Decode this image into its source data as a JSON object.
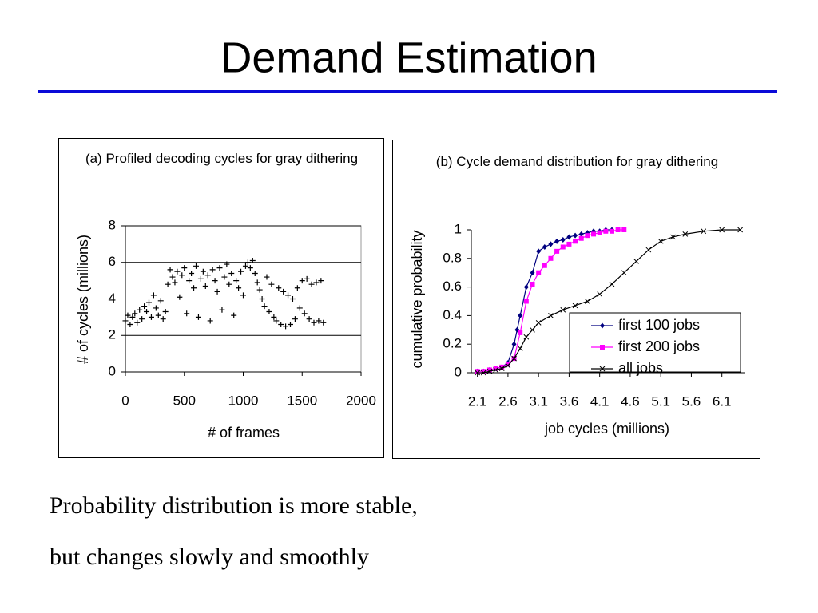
{
  "slide": {
    "title": "Demand Estimation",
    "body": [
      "Probability distribution is more stable,",
      "but changes slowly and smoothly"
    ]
  },
  "chart_data": [
    {
      "type": "scatter",
      "title": "(a) Profiled decoding cycles for gray dithering",
      "x_label": "# of frames",
      "y_label": "# of cycles (millions)",
      "x": [
        0,
        20,
        40,
        60,
        80,
        100,
        120,
        140,
        160,
        180,
        200,
        220,
        240,
        260,
        280,
        300,
        320,
        340,
        360,
        380,
        400,
        420,
        440,
        460,
        480,
        500,
        520,
        540,
        560,
        580,
        600,
        620,
        640,
        660,
        680,
        700,
        720,
        740,
        760,
        780,
        800,
        820,
        840,
        860,
        880,
        900,
        920,
        940,
        960,
        980,
        1000,
        1020,
        1040,
        1060,
        1080,
        1100,
        1120,
        1140,
        1160,
        1180,
        1200,
        1220,
        1240,
        1260,
        1280,
        1300,
        1320,
        1340,
        1360,
        1380,
        1400,
        1420,
        1440,
        1460,
        1480,
        1500,
        1520,
        1540,
        1560,
        1580,
        1600,
        1620,
        1640,
        1660,
        1680
      ],
      "values": [
        2.8,
        3.1,
        2.6,
        3.0,
        3.2,
        2.7,
        3.4,
        2.9,
        3.6,
        3.3,
        3.8,
        3.0,
        4.2,
        3.5,
        3.1,
        3.9,
        2.9,
        3.3,
        4.8,
        5.6,
        5.2,
        4.9,
        5.5,
        4.1,
        5.3,
        5.7,
        3.2,
        5.0,
        5.4,
        4.6,
        5.8,
        3.0,
        5.1,
        5.5,
        4.7,
        5.3,
        2.8,
        5.6,
        5.0,
        4.4,
        5.7,
        3.4,
        5.2,
        5.9,
        4.8,
        5.4,
        3.1,
        5.0,
        4.6,
        5.5,
        4.2,
        5.8,
        6.0,
        5.7,
        6.1,
        5.4,
        4.9,
        4.5,
        4.0,
        3.6,
        5.2,
        3.3,
        4.8,
        3.0,
        2.8,
        4.6,
        2.6,
        4.4,
        2.5,
        4.2,
        2.6,
        4.0,
        2.9,
        4.6,
        3.5,
        5.0,
        3.2,
        5.1,
        2.9,
        4.8,
        2.7,
        4.9,
        2.8,
        5.0,
        2.7
      ],
      "color": "#000000",
      "marker": "plus",
      "xlim": [
        0,
        2000
      ],
      "xticks": [
        0,
        500,
        1000,
        1500,
        2000
      ],
      "ylim": [
        0,
        8
      ],
      "yticks": [
        0,
        2,
        4,
        6,
        8
      ],
      "grid": true
    },
    {
      "type": "line",
      "title": "(b) Cycle demand distribution for gray dithering",
      "x_label": "job cycles (millions)",
      "y_label": "cumulative probability",
      "xlim": [
        2.0,
        6.47
      ],
      "xticks": [
        2.1,
        2.6,
        3.1,
        3.6,
        4.1,
        4.6,
        5.1,
        5.6,
        6.1
      ],
      "ylim": [
        0,
        1
      ],
      "yticks": [
        0,
        0.2,
        0.4,
        0.6,
        0.8,
        1
      ],
      "grid": false,
      "legend": "lower right",
      "series": [
        {
          "name": "first 100 jobs",
          "color": "#000080",
          "marker": "diamond",
          "x": [
            2.1,
            2.2,
            2.3,
            2.4,
            2.5,
            2.6,
            2.7,
            2.75,
            2.8,
            2.9,
            3.0,
            3.1,
            3.2,
            3.3,
            3.4,
            3.5,
            3.6,
            3.7,
            3.8,
            3.9,
            4.0,
            4.1,
            4.2,
            4.3
          ],
          "values": [
            0.01,
            0.01,
            0.02,
            0.03,
            0.04,
            0.07,
            0.2,
            0.3,
            0.4,
            0.6,
            0.7,
            0.85,
            0.88,
            0.9,
            0.92,
            0.93,
            0.95,
            0.96,
            0.97,
            0.98,
            0.99,
            0.99,
            1.0,
            1.0
          ]
        },
        {
          "name": "first 200 jobs",
          "color": "#ff00ff",
          "marker": "square",
          "x": [
            2.1,
            2.2,
            2.3,
            2.4,
            2.5,
            2.6,
            2.7,
            2.8,
            2.9,
            3.0,
            3.1,
            3.2,
            3.3,
            3.4,
            3.5,
            3.6,
            3.7,
            3.8,
            3.9,
            4.0,
            4.1,
            4.2,
            4.3,
            4.4,
            4.5
          ],
          "values": [
            0.01,
            0.01,
            0.02,
            0.03,
            0.04,
            0.06,
            0.1,
            0.28,
            0.5,
            0.62,
            0.7,
            0.75,
            0.8,
            0.85,
            0.88,
            0.9,
            0.92,
            0.94,
            0.96,
            0.97,
            0.98,
            0.99,
            0.99,
            1.0,
            1.0
          ]
        },
        {
          "name": "all jobs",
          "color": "#000000",
          "marker": "x",
          "x": [
            2.1,
            2.2,
            2.3,
            2.4,
            2.5,
            2.6,
            2.7,
            2.8,
            2.9,
            3.0,
            3.1,
            3.3,
            3.5,
            3.7,
            3.9,
            4.1,
            4.3,
            4.5,
            4.7,
            4.9,
            5.1,
            5.3,
            5.5,
            5.8,
            6.1,
            6.4
          ],
          "values": [
            0,
            0,
            0.01,
            0.02,
            0.03,
            0.05,
            0.1,
            0.17,
            0.25,
            0.3,
            0.35,
            0.4,
            0.44,
            0.47,
            0.5,
            0.55,
            0.62,
            0.7,
            0.78,
            0.86,
            0.92,
            0.95,
            0.97,
            0.99,
            1.0,
            1.0
          ]
        }
      ]
    }
  ]
}
